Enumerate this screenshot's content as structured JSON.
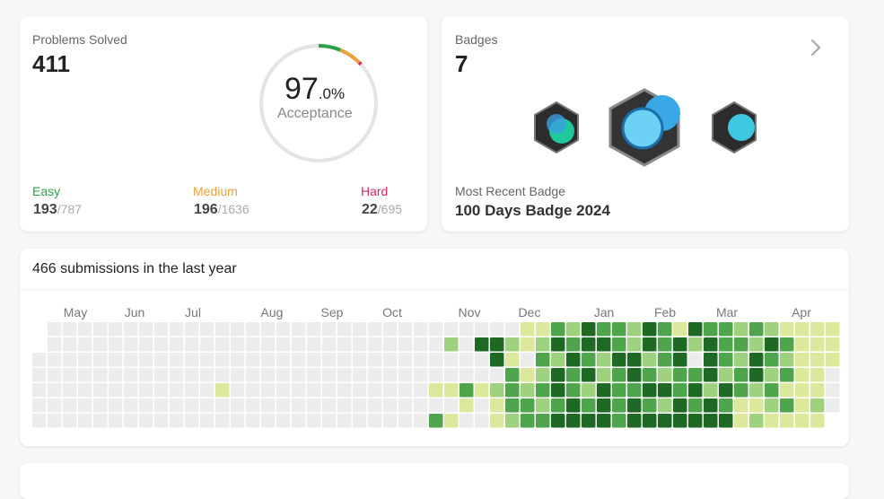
{
  "solved": {
    "title": "Problems Solved",
    "count": 411,
    "acceptance_whole": "97",
    "acceptance_fraction": ".0%",
    "acceptance_label": "Acceptance",
    "levels": [
      {
        "label": "Easy",
        "solved": 193,
        "total": {
          "value": 787,
          "label": "/787"
        }
      },
      {
        "label": "Medium",
        "solved": 196,
        "total": {
          "value": 1636,
          "label": "/1636"
        }
      },
      {
        "label": "Hard",
        "solved": 22,
        "total": {
          "value": 695,
          "label": "/695"
        }
      }
    ]
  },
  "badges": {
    "title": "Badges",
    "count": 7,
    "recent_label": "Most Recent Badge",
    "recent_name": "100 Days Badge 2024"
  },
  "heatmap": {
    "title": "466 submissions in the last year",
    "months": [
      "May",
      "Jun",
      "Jul",
      "Aug",
      "Sep",
      "Oct",
      "Nov",
      "Dec",
      "Jan",
      "Feb",
      "Mar",
      "Apr"
    ],
    "levels": [
      [
        null,
        0,
        0,
        0,
        0,
        0,
        0,
        0,
        0,
        0,
        0,
        0,
        0,
        0,
        0,
        0,
        0,
        0,
        0,
        0,
        0,
        0,
        0,
        0,
        0,
        0,
        0,
        0,
        0,
        0,
        0,
        0,
        1,
        1,
        3,
        2,
        4,
        3,
        3,
        2,
        4,
        3,
        1,
        4,
        3,
        3,
        2,
        3,
        2,
        1,
        1,
        1,
        1
      ],
      [
        null,
        0,
        0,
        0,
        0,
        0,
        0,
        0,
        0,
        0,
        0,
        0,
        0,
        0,
        0,
        0,
        0,
        0,
        0,
        0,
        0,
        0,
        0,
        0,
        0,
        0,
        0,
        2,
        0,
        4,
        4,
        2,
        1,
        2,
        4,
        3,
        4,
        4,
        3,
        2,
        4,
        3,
        4,
        2,
        4,
        3,
        3,
        2,
        4,
        3,
        1,
        1,
        1
      ],
      [
        0,
        0,
        0,
        0,
        0,
        0,
        0,
        0,
        0,
        0,
        0,
        0,
        0,
        0,
        0,
        0,
        0,
        0,
        0,
        0,
        0,
        0,
        0,
        0,
        0,
        0,
        0,
        0,
        0,
        0,
        4,
        1,
        0,
        3,
        2,
        4,
        3,
        2,
        4,
        4,
        2,
        3,
        4,
        0,
        4,
        3,
        2,
        4,
        3,
        2,
        1,
        1,
        1
      ],
      [
        0,
        0,
        0,
        0,
        0,
        0,
        0,
        0,
        0,
        0,
        0,
        0,
        0,
        0,
        0,
        0,
        0,
        0,
        0,
        0,
        0,
        0,
        0,
        0,
        0,
        0,
        0,
        0,
        0,
        0,
        0,
        3,
        1,
        2,
        4,
        3,
        4,
        2,
        3,
        4,
        3,
        2,
        3,
        3,
        4,
        2,
        3,
        4,
        2,
        3,
        1,
        1,
        0
      ],
      [
        0,
        0,
        0,
        0,
        0,
        0,
        0,
        0,
        0,
        0,
        0,
        0,
        1,
        0,
        0,
        0,
        0,
        0,
        0,
        0,
        0,
        0,
        0,
        0,
        0,
        0,
        1,
        1,
        3,
        1,
        2,
        3,
        2,
        3,
        4,
        3,
        2,
        4,
        3,
        3,
        4,
        4,
        3,
        4,
        2,
        4,
        3,
        2,
        3,
        1,
        1,
        1,
        0
      ],
      [
        0,
        0,
        0,
        0,
        0,
        0,
        0,
        0,
        0,
        0,
        0,
        0,
        0,
        0,
        0,
        0,
        0,
        0,
        0,
        0,
        0,
        0,
        0,
        0,
        0,
        0,
        0,
        0,
        1,
        0,
        1,
        3,
        3,
        2,
        3,
        4,
        3,
        4,
        3,
        4,
        3,
        2,
        4,
        3,
        4,
        3,
        1,
        1,
        2,
        3,
        1,
        2,
        0
      ],
      [
        0,
        0,
        0,
        0,
        0,
        0,
        0,
        0,
        0,
        0,
        0,
        0,
        0,
        0,
        0,
        0,
        0,
        0,
        0,
        0,
        0,
        0,
        0,
        0,
        0,
        0,
        3,
        1,
        0,
        0,
        1,
        2,
        3,
        3,
        4,
        4,
        4,
        4,
        3,
        4,
        4,
        4,
        4,
        4,
        4,
        4,
        1,
        2,
        1,
        1,
        1,
        1,
        null
      ]
    ]
  }
}
